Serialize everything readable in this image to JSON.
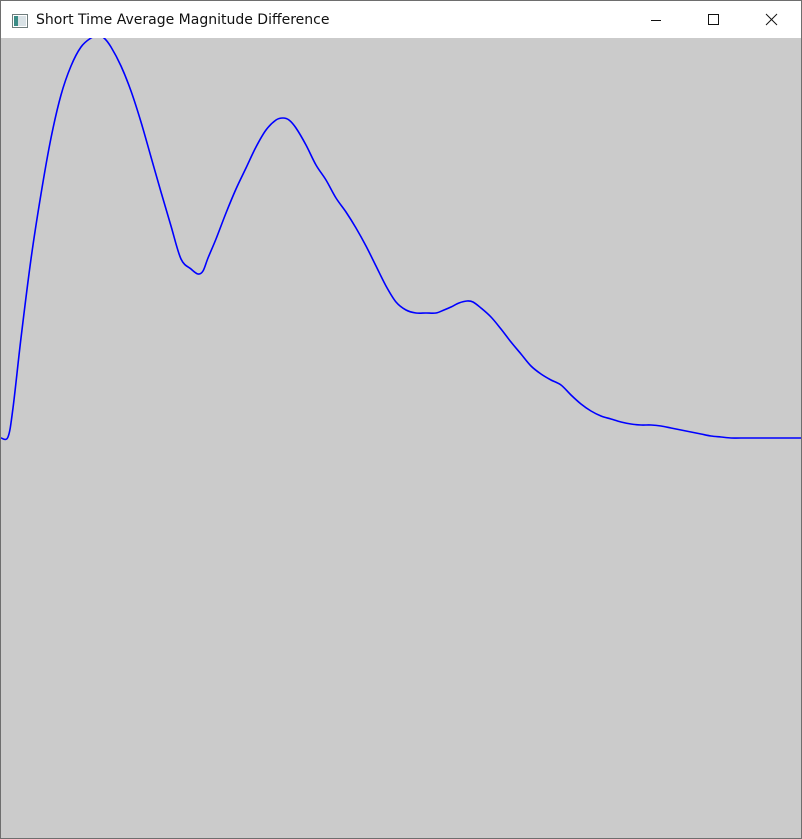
{
  "window": {
    "title": "Short Time Average Magnitude Difference",
    "client_background": "#cbcbcb",
    "icons": {
      "app": "app-window-icon",
      "minimize": "minimize-icon",
      "maximize": "maximize-icon",
      "close": "close-icon"
    }
  },
  "chart_data": {
    "type": "line",
    "title": "",
    "xlabel": "",
    "ylabel": "",
    "xlim": [
      0,
      800
    ],
    "ylim": [
      -400,
      400
    ],
    "grid": false,
    "series": [
      {
        "color": "#0000ff",
        "x": [
          0,
          7,
          12,
          20,
          30,
          40,
          50,
          60,
          70,
          80,
          90,
          97,
          103,
          110,
          120,
          130,
          140,
          150,
          160,
          170,
          180,
          190,
          197,
          202,
          207,
          215,
          225,
          235,
          245,
          255,
          265,
          275,
          282,
          288,
          295,
          305,
          315,
          325,
          335,
          345,
          355,
          365,
          375,
          385,
          395,
          405,
          415,
          425,
          435,
          443,
          450,
          458,
          466,
          472,
          480,
          490,
          500,
          510,
          520,
          530,
          540,
          550,
          560,
          570,
          580,
          590,
          600,
          610,
          620,
          630,
          640,
          650,
          660,
          670,
          680,
          690,
          700,
          710,
          720,
          730,
          740,
          760,
          780,
          800
        ],
        "y": [
          0,
          1,
          30,
          100,
          179,
          244,
          300,
          343,
          372,
          391,
          400,
          402,
          400,
          391,
          372,
          347,
          316,
          281,
          246,
          212,
          179,
          169,
          164,
          167,
          180,
          199,
          225,
          249,
          270,
          291,
          308,
          318,
          320,
          318,
          310,
          293,
          273,
          258,
          240,
          226,
          210,
          192,
          172,
          152,
          136,
          128,
          125,
          125,
          125,
          128,
          131,
          135,
          137,
          136,
          130,
          121,
          109,
          96,
          84,
          72,
          64,
          58,
          53,
          43,
          34,
          27,
          22,
          19,
          16,
          14,
          13,
          13,
          12,
          10,
          8,
          6,
          4,
          2,
          1,
          0,
          0,
          0,
          0,
          0
        ]
      }
    ]
  }
}
